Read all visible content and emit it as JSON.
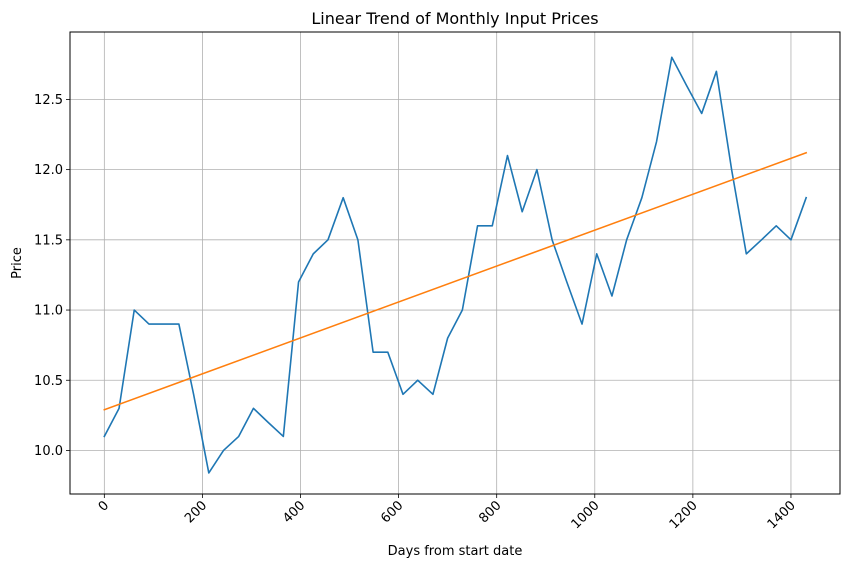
{
  "chart_data": {
    "type": "line",
    "title": "Linear Trend of Monthly Input Prices",
    "xlabel": "Days from start date",
    "ylabel": "Price",
    "xlim": [
      -70,
      1500
    ],
    "ylim": [
      9.69,
      12.98
    ],
    "x_ticks": [
      0,
      200,
      400,
      600,
      800,
      1000,
      1200,
      1400
    ],
    "y_ticks": [
      10.0,
      10.5,
      11.0,
      11.5,
      12.0,
      12.5
    ],
    "y_tick_labels": [
      "10.0",
      "10.5",
      "11.0",
      "11.5",
      "12.0",
      "12.5"
    ],
    "grid": true,
    "x_tick_rotation": 45,
    "series": [
      {
        "color": "#1f77b4",
        "x": [
          0,
          30,
          61,
          91,
          122,
          152,
          182,
          213,
          243,
          274,
          304,
          334,
          365,
          396,
          426,
          456,
          487,
          517,
          548,
          578,
          609,
          639,
          670,
          700,
          730,
          761,
          791,
          822,
          852,
          882,
          913,
          943,
          974,
          1004,
          1035,
          1065,
          1096,
          1126,
          1157,
          1187,
          1218,
          1248,
          1279,
          1309,
          1340,
          1370,
          1400,
          1431
        ],
        "y": [
          10.1,
          10.3,
          11.0,
          10.9,
          10.9,
          10.9,
          10.4,
          9.84,
          10.0,
          10.1,
          10.3,
          10.2,
          10.1,
          11.2,
          11.4,
          11.5,
          11.8,
          11.5,
          10.7,
          10.7,
          10.4,
          10.5,
          10.4,
          10.8,
          11.0,
          11.6,
          11.6,
          12.1,
          11.7,
          12.0,
          11.5,
          11.2,
          10.9,
          11.4,
          11.1,
          11.5,
          11.8,
          12.2,
          12.8,
          12.6,
          12.4,
          12.7,
          12.0,
          11.4,
          11.5,
          11.6,
          11.5,
          11.8
        ]
      },
      {
        "color": "#ff7f0e",
        "x": [
          0,
          1431
        ],
        "y": [
          10.29,
          12.12
        ]
      }
    ]
  }
}
